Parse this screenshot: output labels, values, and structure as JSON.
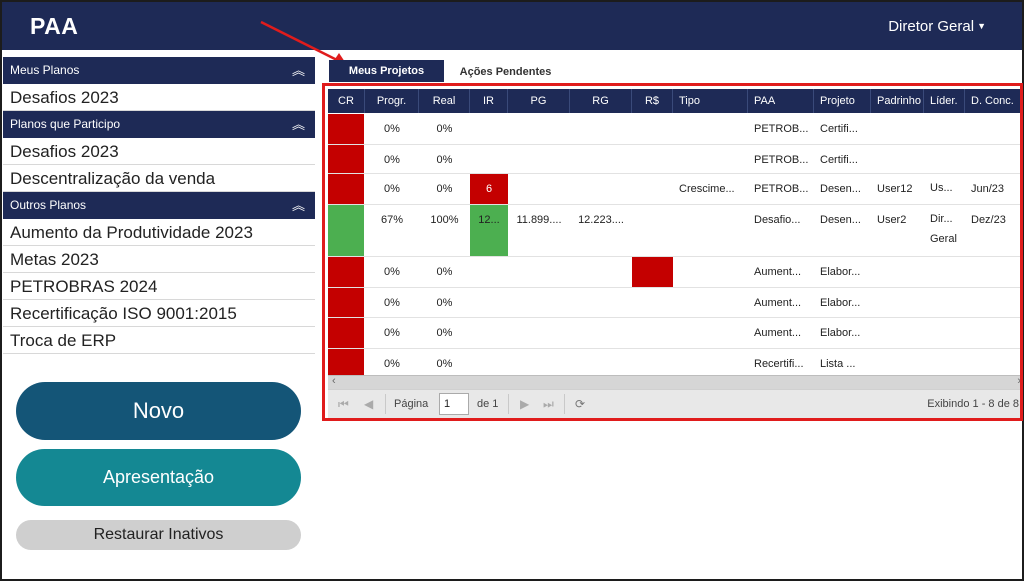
{
  "app": {
    "title": "PAA",
    "user_menu": "Diretor Geral"
  },
  "sidebar": {
    "sections": [
      {
        "title": "Meus Planos",
        "items": [
          "Desafios 2023"
        ]
      },
      {
        "title": "Planos que Participo",
        "items": [
          "Desafios 2023",
          "Descentralização da venda"
        ]
      },
      {
        "title": "Outros Planos",
        "items": [
          "Aumento da Produtividade 2023",
          "Metas 2023",
          "PETROBRAS 2024",
          "Recertificação ISO 9001:2015",
          "Troca de ERP"
        ]
      }
    ],
    "chevron": "⌃"
  },
  "buttons": {
    "novo": "Novo",
    "apresentacao": "Apresentação",
    "restaurar": "Restaurar Inativos"
  },
  "tabs": {
    "active": "Meus Projetos",
    "inactive": "Ações Pendentes"
  },
  "grid": {
    "columns": [
      "CR",
      "Progr.",
      "Real",
      "IR",
      "PG",
      "RG",
      "R$",
      "Tipo",
      "PAA",
      "Projeto",
      "Padrinho",
      "Líder.",
      "D. Conc."
    ],
    "rows": [
      {
        "cr": "red",
        "prog": "0%",
        "real": "0%",
        "ir": "",
        "ir_color": "",
        "pg": "",
        "rg": "",
        "rs_color": "",
        "tipo": "",
        "paa": "PETROB...",
        "projeto": "Certifi...",
        "padrinho": "",
        "lider": "",
        "dconc": ""
      },
      {
        "cr": "red",
        "prog": "0%",
        "real": "0%",
        "ir": "",
        "ir_color": "",
        "pg": "",
        "rg": "",
        "rs_color": "",
        "tipo": "",
        "paa": "PETROB...",
        "projeto": "Certifi...",
        "padrinho": "",
        "lider": "",
        "dconc": ""
      },
      {
        "cr": "red",
        "prog": "0%",
        "real": "0%",
        "ir": "6",
        "ir_color": "red",
        "pg": "",
        "rg": "",
        "rs_color": "",
        "tipo": "Crescime...",
        "paa": "PETROB...",
        "projeto": "Desen...",
        "padrinho": "User12",
        "lider": "Us...",
        "dconc": "Jun/23"
      },
      {
        "cr": "green",
        "prog": "67%",
        "real": "100%",
        "ir": "12...",
        "ir_color": "green",
        "pg": "11.899....",
        "rg": "12.223....",
        "rs_color": "",
        "tipo": "",
        "paa": "Desafio...",
        "projeto": "Desen...",
        "padrinho": "User2",
        "lider": "Dir... Geral",
        "dconc": "Dez/23"
      },
      {
        "cr": "red",
        "prog": "0%",
        "real": "0%",
        "ir": "",
        "ir_color": "",
        "pg": "",
        "rg": "",
        "rs_color": "red",
        "tipo": "",
        "paa": "Aument...",
        "projeto": "Elabor...",
        "padrinho": "",
        "lider": "",
        "dconc": ""
      },
      {
        "cr": "red",
        "prog": "0%",
        "real": "0%",
        "ir": "",
        "ir_color": "",
        "pg": "",
        "rg": "",
        "rs_color": "",
        "tipo": "",
        "paa": "Aument...",
        "projeto": "Elabor...",
        "padrinho": "",
        "lider": "",
        "dconc": ""
      },
      {
        "cr": "red",
        "prog": "0%",
        "real": "0%",
        "ir": "",
        "ir_color": "",
        "pg": "",
        "rg": "",
        "rs_color": "",
        "tipo": "",
        "paa": "Aument...",
        "projeto": "Elabor...",
        "padrinho": "",
        "lider": "",
        "dconc": ""
      },
      {
        "cr": "red",
        "prog": "0%",
        "real": "0%",
        "ir": "",
        "ir_color": "",
        "pg": "",
        "rg": "",
        "rs_color": "",
        "tipo": "",
        "paa": "Recertifi...",
        "projeto": "Lista ...",
        "padrinho": "",
        "lider": "",
        "dconc": ""
      }
    ]
  },
  "pager": {
    "page_label": "Página",
    "page_value": "1",
    "of_label": "de 1",
    "summary": "Exibindo 1 - 8 de 8"
  },
  "colors": {
    "navy": "#1e2a56",
    "red": "#c40000",
    "green": "#4caf50",
    "highlight": "#e01c1c",
    "novo": "#145577",
    "apresentacao": "#148893"
  },
  "icons": [
    "chevron-up-icon",
    "caret-down-icon",
    "first-page-icon",
    "prev-page-icon",
    "next-page-icon",
    "last-page-icon",
    "refresh-icon",
    "arrow-annotation"
  ]
}
